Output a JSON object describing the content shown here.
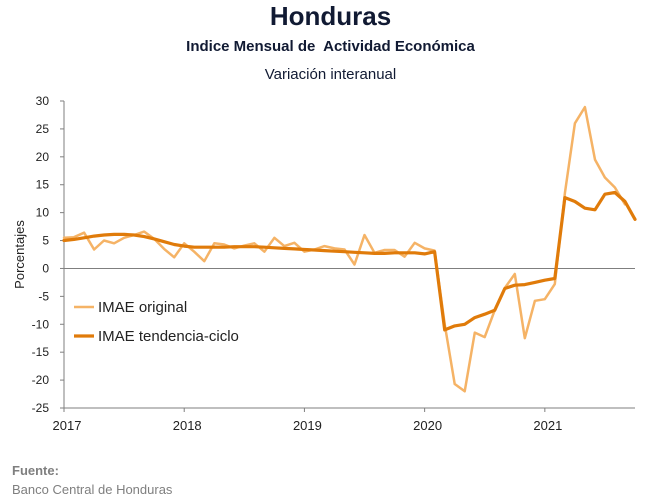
{
  "header": {
    "title": "Honduras",
    "subtitle": "Indice Mensual de  Actividad Económica",
    "subsubtitle": "Variación interanual"
  },
  "footer": {
    "source_label": "Fuente:",
    "source_value": "Banco Central de Honduras"
  },
  "chart_data": {
    "type": "line",
    "title": "Honduras",
    "subtitle": "Indice Mensual de  Actividad Económica",
    "ylabel": "Porcentajes",
    "xlabel": "",
    "ylim": [
      -25,
      30
    ],
    "yticks": [
      -25,
      -20,
      -15,
      -10,
      -5,
      0,
      5,
      10,
      15,
      20,
      25,
      30
    ],
    "xlim": [
      2017.0,
      2021.75
    ],
    "xticks": [
      2017,
      2018,
      2019,
      2020,
      2021
    ],
    "legend_position": "left",
    "grid": false,
    "zero_line": true,
    "series": [
      {
        "name": "IMAE original",
        "color": "#f5b366",
        "x": [
          2017.0,
          2017.083,
          2017.167,
          2017.25,
          2017.333,
          2017.417,
          2017.5,
          2017.583,
          2017.667,
          2017.75,
          2017.833,
          2017.917,
          2018.0,
          2018.083,
          2018.167,
          2018.25,
          2018.333,
          2018.417,
          2018.5,
          2018.583,
          2018.667,
          2018.75,
          2018.833,
          2018.917,
          2019.0,
          2019.083,
          2019.167,
          2019.25,
          2019.333,
          2019.417,
          2019.5,
          2019.583,
          2019.667,
          2019.75,
          2019.833,
          2019.917,
          2020.0,
          2020.083,
          2020.167,
          2020.25,
          2020.333,
          2020.417,
          2020.5,
          2020.583,
          2020.667,
          2020.75,
          2020.833,
          2020.917,
          2021.0,
          2021.083,
          2021.167,
          2021.25,
          2021.333,
          2021.417,
          2021.5,
          2021.583,
          2021.667
        ],
        "values": [
          5.5,
          5.6,
          6.4,
          3.4,
          5.0,
          4.5,
          5.5,
          6.0,
          6.6,
          5.3,
          3.5,
          2.0,
          4.5,
          3.0,
          1.3,
          4.5,
          4.3,
          3.6,
          4.1,
          4.5,
          3.0,
          5.5,
          4.0,
          4.6,
          3.0,
          3.4,
          4.0,
          3.6,
          3.4,
          0.7,
          6.0,
          2.8,
          3.3,
          3.3,
          2.1,
          4.6,
          3.6,
          3.2,
          -10.0,
          -20.7,
          -22.0,
          -11.5,
          -12.3,
          -7.5,
          -3.5,
          -1.0,
          -12.5,
          -5.8,
          -5.5,
          -2.8,
          13.5,
          26.0,
          28.9,
          19.5,
          16.3,
          14.5,
          11.5
        ]
      },
      {
        "name": "IMAE tendencia-ciclo",
        "color": "#e07b0a",
        "x": [
          2017.0,
          2017.083,
          2017.167,
          2017.25,
          2017.333,
          2017.417,
          2017.5,
          2017.583,
          2017.667,
          2017.75,
          2017.833,
          2017.917,
          2018.0,
          2018.083,
          2018.167,
          2018.25,
          2018.333,
          2018.417,
          2018.5,
          2018.583,
          2018.667,
          2018.75,
          2018.833,
          2018.917,
          2019.0,
          2019.083,
          2019.167,
          2019.25,
          2019.333,
          2019.417,
          2019.5,
          2019.583,
          2019.667,
          2019.75,
          2019.833,
          2019.917,
          2020.0,
          2020.083,
          2020.167,
          2020.25,
          2020.333,
          2020.417,
          2020.5,
          2020.583,
          2020.667,
          2020.75,
          2020.833,
          2020.917,
          2021.0,
          2021.083,
          2021.167,
          2021.25,
          2021.333,
          2021.417,
          2021.5,
          2021.583,
          2021.667,
          2021.75
        ],
        "values": [
          5.0,
          5.2,
          5.5,
          5.8,
          6.0,
          6.1,
          6.1,
          6.0,
          5.7,
          5.3,
          4.8,
          4.3,
          4.0,
          3.8,
          3.8,
          3.8,
          3.8,
          3.9,
          3.9,
          3.9,
          3.8,
          3.7,
          3.6,
          3.5,
          3.4,
          3.3,
          3.2,
          3.1,
          3.0,
          2.9,
          2.8,
          2.7,
          2.7,
          2.8,
          2.8,
          2.8,
          2.6,
          3.0,
          -11.0,
          -10.3,
          -10.0,
          -8.8,
          -8.2,
          -7.5,
          -3.6,
          -3.0,
          -2.9,
          -2.5,
          -2.1,
          -1.8,
          12.7,
          12.0,
          10.8,
          10.5,
          13.3,
          13.6,
          12.0,
          8.8
        ]
      }
    ]
  }
}
